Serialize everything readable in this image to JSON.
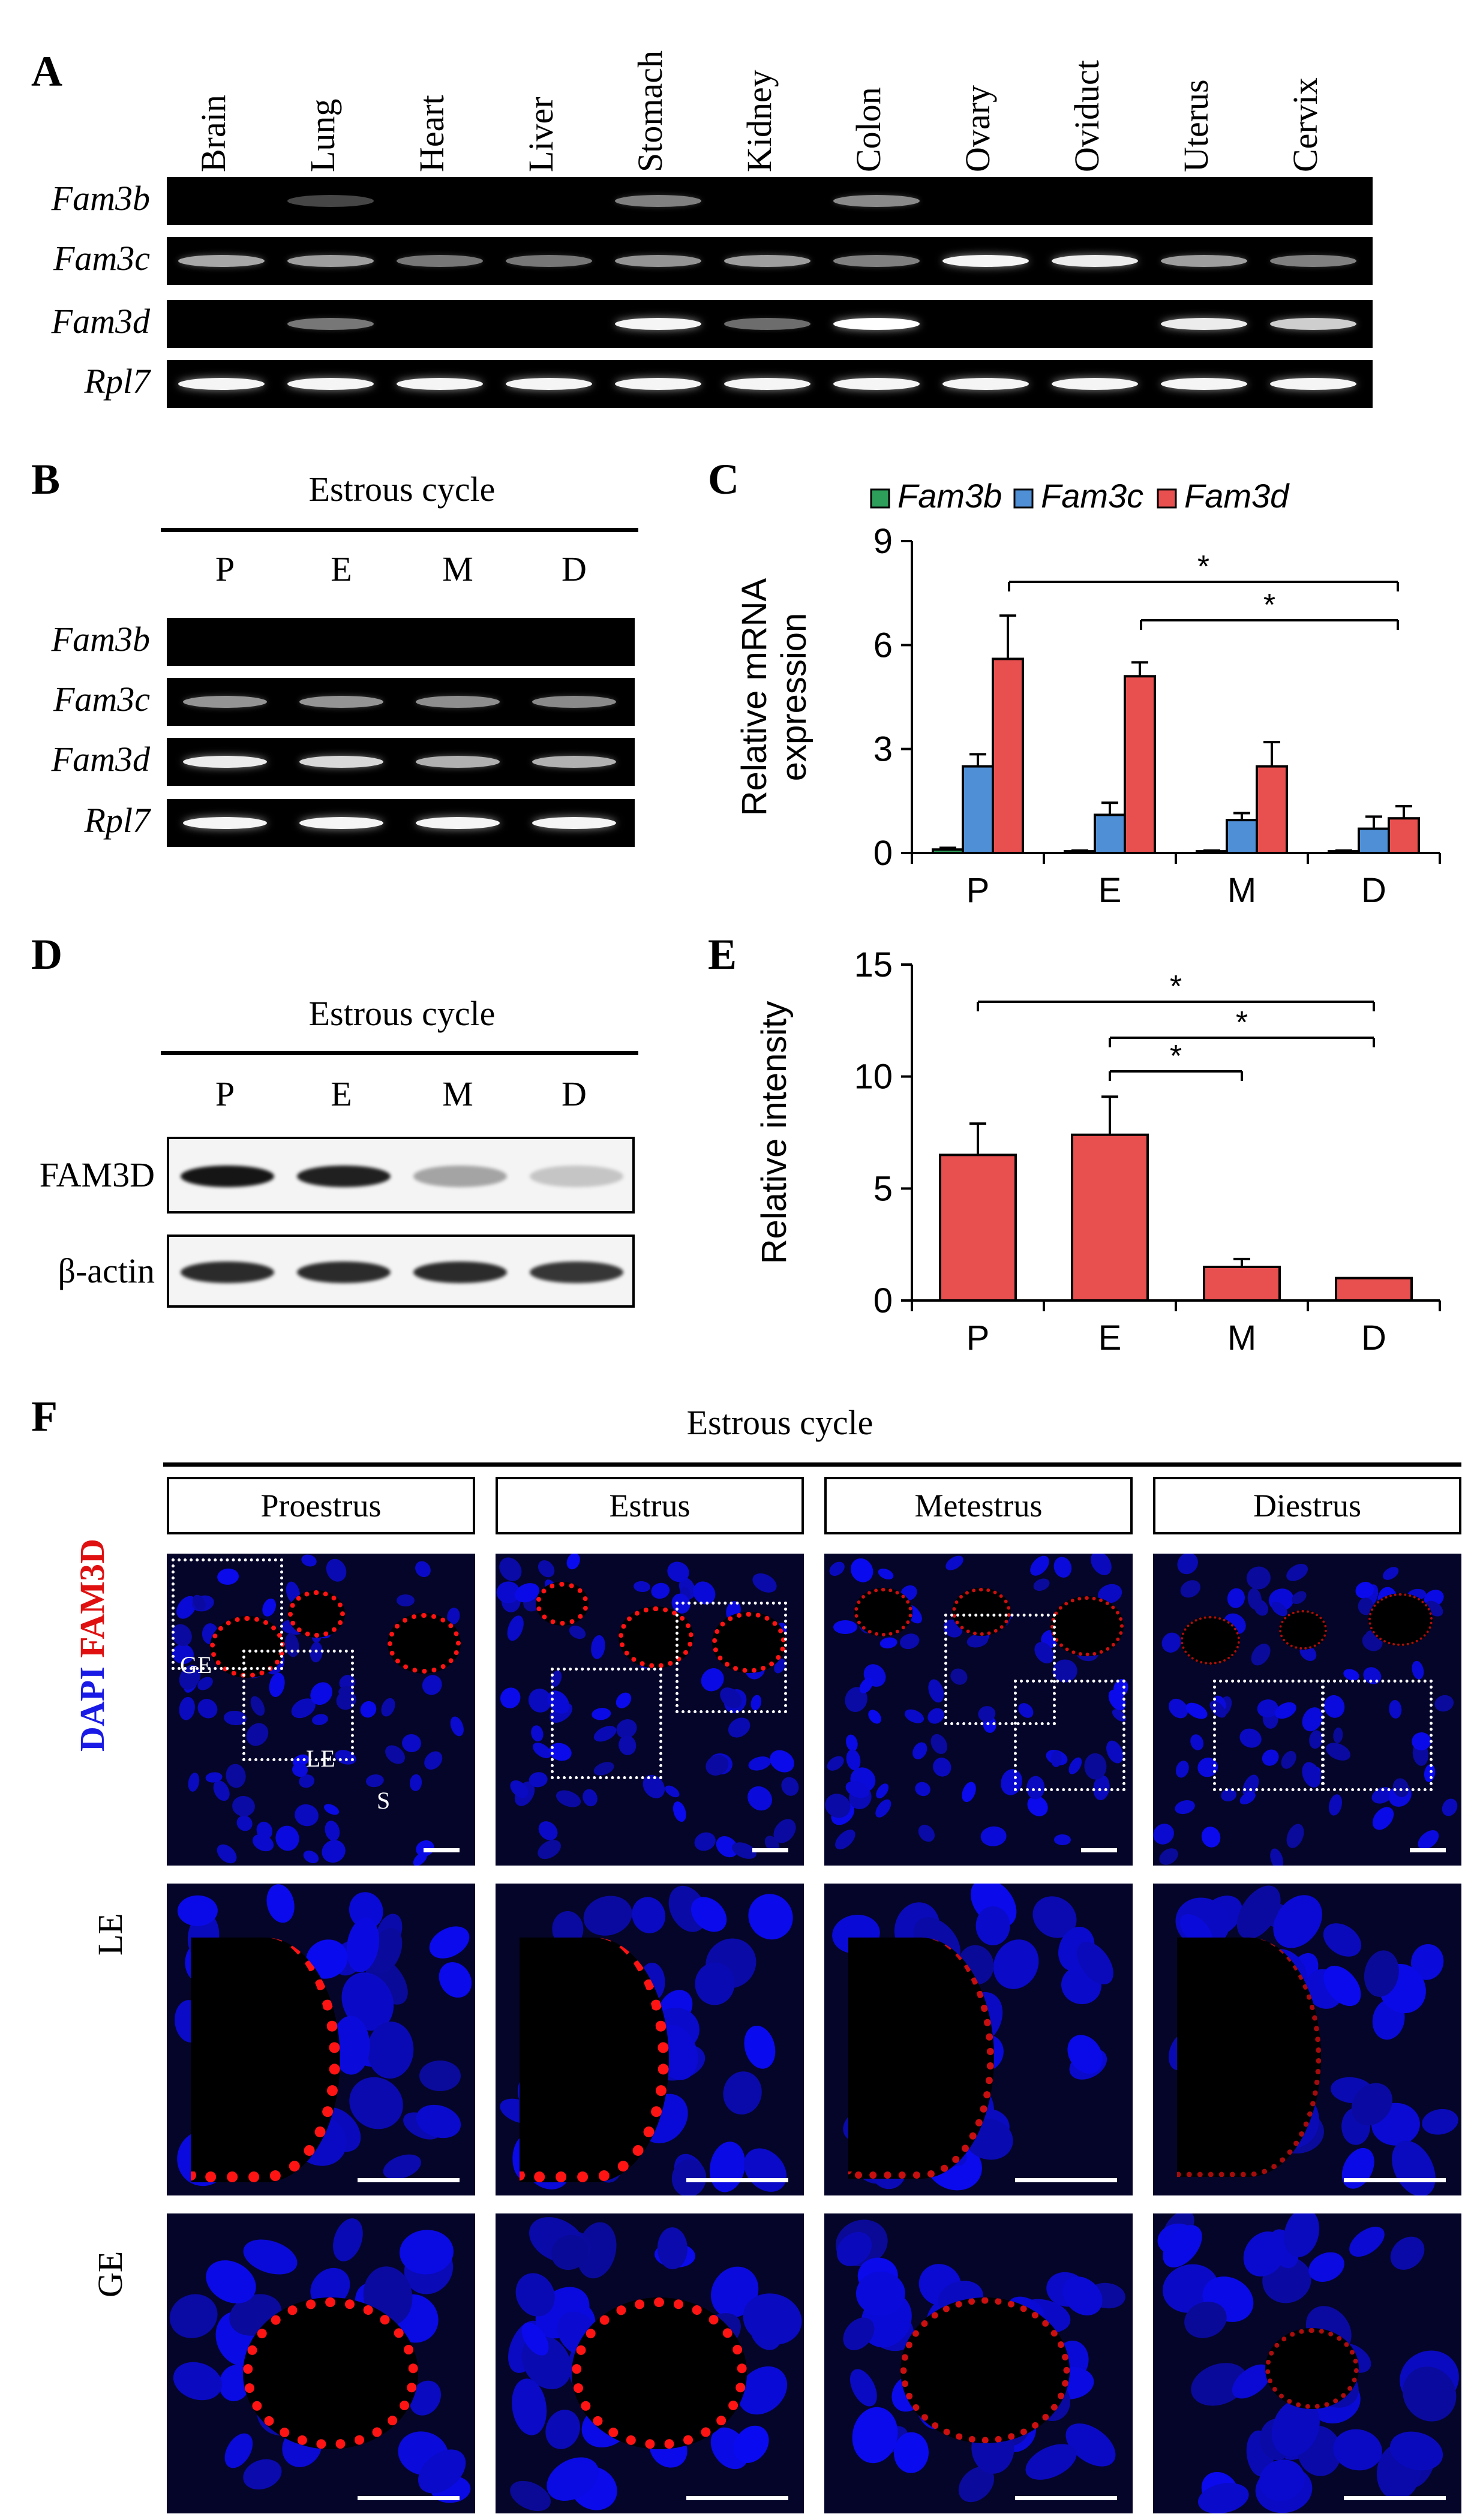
{
  "panel_labels": {
    "A": "A",
    "B": "B",
    "C": "C",
    "D": "D",
    "E": "E",
    "F": "F"
  },
  "panel_a": {
    "tissues": [
      "Brain",
      "Lung",
      "Heart",
      "Liver",
      "Stomach",
      "Kidney",
      "Colon",
      "Ovary",
      "Oviduct",
      "Uterus",
      "Cervix"
    ],
    "genes": [
      "Fam3b",
      "Fam3c",
      "Fam3d",
      "Rpl7"
    ]
  },
  "panel_b": {
    "title": "Estrous cycle",
    "stages": [
      "P",
      "E",
      "M",
      "D"
    ],
    "genes": [
      "Fam3b",
      "Fam3c",
      "Fam3d",
      "Rpl7"
    ]
  },
  "panel_d": {
    "title": "Estrous cycle",
    "stages": [
      "P",
      "E",
      "M",
      "D"
    ],
    "proteins": [
      "FAM3D",
      "β-actin"
    ]
  },
  "panel_f": {
    "title": "Estrous cycle",
    "stages": [
      "Proestrus",
      "Estrus",
      "Metestrus",
      "Diestrus"
    ],
    "row_labels": [
      "LE",
      "GE"
    ],
    "stain_dapi": "DAPI",
    "stain_fam3d": "FAM3D",
    "region_labels": {
      "ge": "GE",
      "le": "LE",
      "s": "S"
    }
  },
  "chart_data": [
    {
      "type": "bar",
      "panel": "C",
      "categories": [
        "P",
        "E",
        "M",
        "D"
      ],
      "series": [
        {
          "name": "Fam3b",
          "values": [
            0.1,
            0.05,
            0.05,
            0.05
          ],
          "errors": [
            0.05,
            0.02,
            0.02,
            0.02
          ],
          "color": "#2e9e5b"
        },
        {
          "name": "Fam3c",
          "values": [
            2.5,
            1.1,
            0.95,
            0.7
          ],
          "errors": [
            0.35,
            0.35,
            0.2,
            0.35
          ],
          "color": "#4f8fd6"
        },
        {
          "name": "Fam3d",
          "values": [
            5.6,
            5.1,
            2.5,
            1.0
          ],
          "errors": [
            1.25,
            0.4,
            0.7,
            0.35
          ],
          "color": "#e8504f"
        }
      ],
      "ylabel": "Relative mRNA expression",
      "ylim": [
        0,
        9
      ],
      "yticks": [
        0,
        3,
        6,
        9
      ],
      "significance": [
        {
          "from": "P",
          "to": "D",
          "label": "*"
        },
        {
          "from": "E",
          "to": "D",
          "label": "*"
        }
      ],
      "legend": "top"
    },
    {
      "type": "bar",
      "panel": "E",
      "categories": [
        "P",
        "E",
        "M",
        "D"
      ],
      "series": [
        {
          "values": [
            6.5,
            7.4,
            1.5,
            1.0
          ],
          "errors": [
            1.4,
            1.7,
            0.35,
            0.0
          ],
          "color": "#e8504f"
        }
      ],
      "ylabel": "Relative intensity",
      "ylim": [
        0,
        15
      ],
      "yticks": [
        0,
        5,
        10,
        15
      ],
      "significance": [
        {
          "from": "P",
          "to": "D",
          "label": "*"
        },
        {
          "from": "E",
          "to": "D",
          "label": "*"
        },
        {
          "from": "E",
          "to": "M",
          "label": "*"
        }
      ]
    }
  ]
}
